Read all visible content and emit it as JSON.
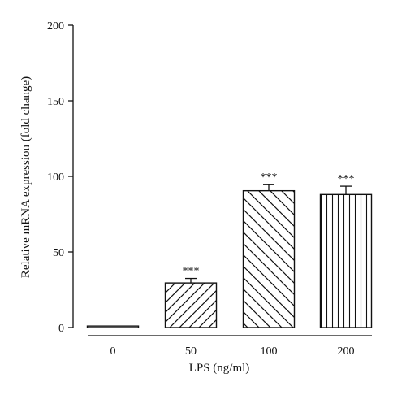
{
  "chart_data": {
    "type": "bar",
    "categories": [
      "0",
      "50",
      "100",
      "200"
    ],
    "values": [
      1,
      29.5,
      90.5,
      88
    ],
    "errors": [
      0,
      3,
      4,
      5.5
    ],
    "significance": [
      "",
      "***",
      "***",
      "***"
    ],
    "patterns": [
      "none",
      "diag-fwd",
      "diag-back",
      "vertical"
    ],
    "title": "",
    "xlabel": "LPS (ng/ml)",
    "ylabel": "Relative mRNA expression (fold change)",
    "ylim": [
      0,
      200
    ],
    "yticks": [
      0,
      50,
      100,
      150,
      200
    ],
    "grid": false
  }
}
